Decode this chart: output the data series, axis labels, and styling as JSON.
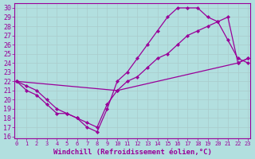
{
  "bg_color": "#b2dfdf",
  "grid_color": "#c8e8e8",
  "line_color": "#990099",
  "marker": "D",
  "marker_size": 2.2,
  "xlabel": "Windchill (Refroidissement éolien,°C)",
  "xlim": [
    0,
    23
  ],
  "ylim": [
    16,
    30
  ],
  "xticks": [
    0,
    1,
    2,
    3,
    4,
    5,
    6,
    7,
    8,
    9,
    10,
    11,
    12,
    13,
    14,
    15,
    16,
    17,
    18,
    19,
    20,
    21,
    22,
    23
  ],
  "yticks": [
    16,
    17,
    18,
    19,
    20,
    21,
    22,
    23,
    24,
    25,
    26,
    27,
    28,
    29,
    30
  ],
  "curve1_x": [
    0,
    1,
    2,
    3,
    4,
    5,
    6,
    7,
    8,
    9,
    10,
    22,
    23
  ],
  "curve1_y": [
    22,
    21,
    20.5,
    19.5,
    18.5,
    18.5,
    18,
    17.5,
    17,
    19.5,
    21,
    24,
    24.5
  ],
  "curve2_x": [
    0,
    1,
    2,
    3,
    4,
    5,
    6,
    7,
    8,
    9,
    10,
    11,
    12,
    13,
    14,
    15,
    16,
    17,
    18,
    19,
    20,
    21,
    22,
    23
  ],
  "curve2_y": [
    22,
    21.5,
    21,
    20,
    19,
    18.5,
    18,
    17,
    16.5,
    19,
    22,
    23,
    24.5,
    26,
    27.5,
    29,
    30,
    30,
    30,
    29,
    28.5,
    26.5,
    24.5,
    24
  ],
  "curve3_x": [
    0,
    10,
    11,
    12,
    13,
    14,
    15,
    16,
    17,
    18,
    19,
    20,
    21,
    22,
    23
  ],
  "curve3_y": [
    22,
    21,
    22,
    22.5,
    23.5,
    24.5,
    25,
    26,
    27,
    27.5,
    28,
    28.5,
    29,
    24,
    24.5
  ],
  "font_size_xlabel": 6.5,
  "font_size_ytick": 6,
  "font_size_xtick": 5
}
